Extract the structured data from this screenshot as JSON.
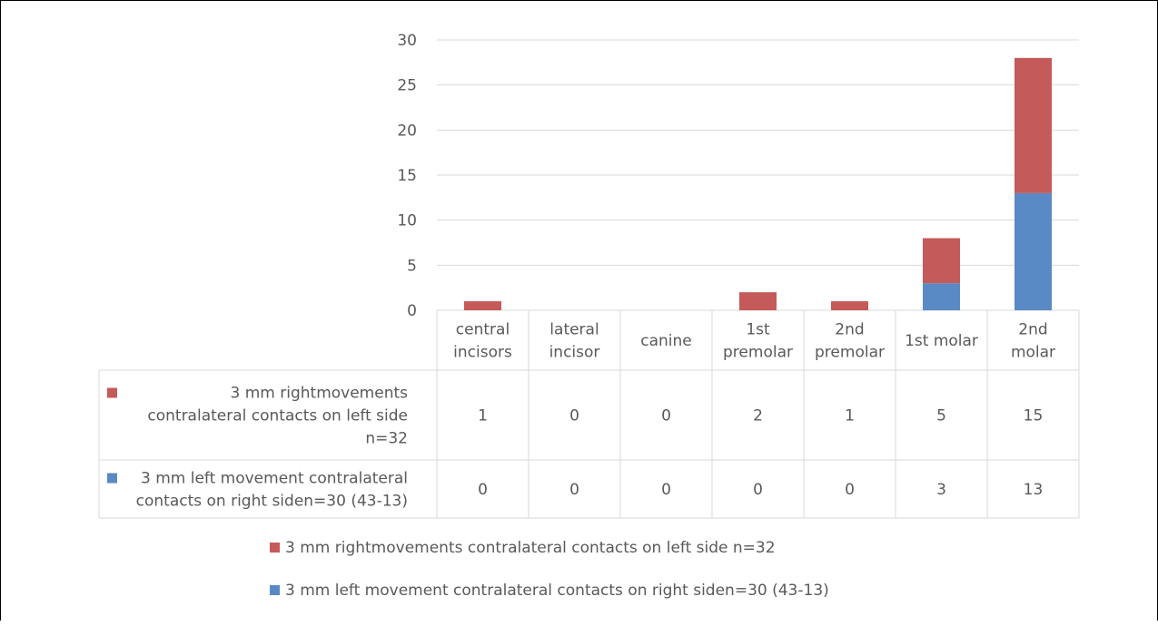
{
  "chart_data": {
    "type": "bar",
    "stacked": true,
    "categories": [
      [
        "central",
        "incisors"
      ],
      [
        "lateral",
        "incisor"
      ],
      [
        "canine"
      ],
      [
        "1st",
        "premolar"
      ],
      [
        "2nd",
        "premolar"
      ],
      [
        "1st molar"
      ],
      [
        "2nd",
        "molar"
      ]
    ],
    "series": [
      {
        "name": "3 mm rightmovements contralateral contacts on left side n=32",
        "table_label_lines": [
          "3 mm rightmovements",
          "contralateral contacts on left side",
          "n=32"
        ],
        "values": [
          1,
          0,
          0,
          2,
          1,
          5,
          15
        ],
        "color": "#C55A5A",
        "stack_order": 2
      },
      {
        "name": "3 mm left movement contralateral contacts on right siden=30 (43-13)",
        "table_label_lines": [
          "3 mm left movement contralateral",
          "contacts on right siden=30 (43-13)"
        ],
        "values": [
          0,
          0,
          0,
          0,
          0,
          3,
          13
        ],
        "color": "#5A8AC5",
        "stack_order": 1
      }
    ],
    "ylim": [
      0,
      30
    ],
    "yticks": [
      0,
      5,
      10,
      15,
      20,
      25,
      30
    ],
    "grid": true,
    "data_table": true,
    "legend_position": "bottom"
  }
}
